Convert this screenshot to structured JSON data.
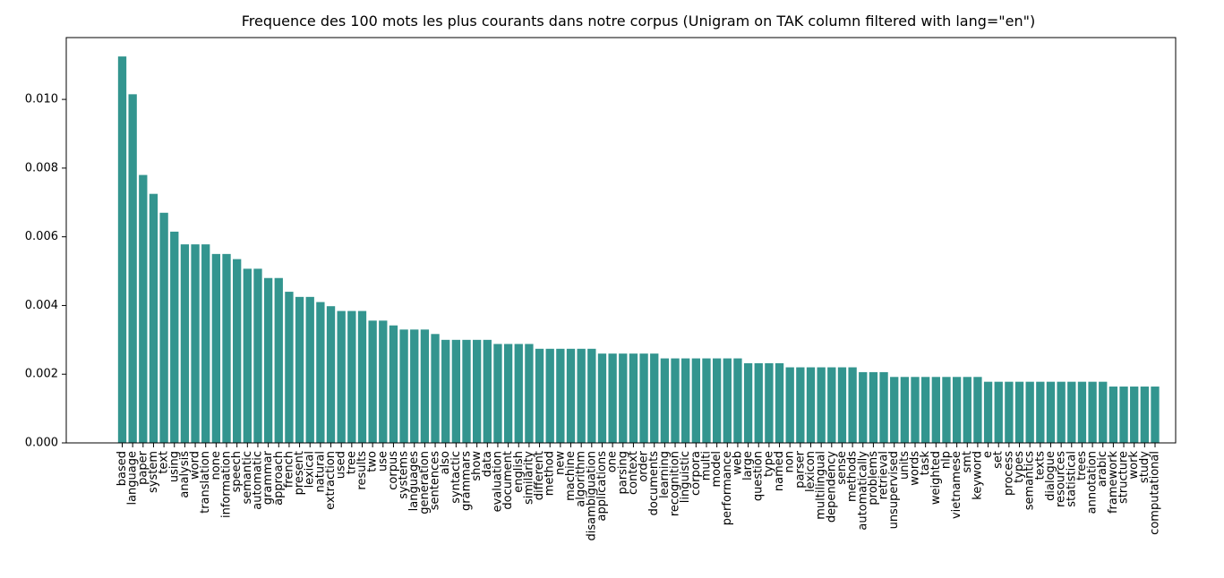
{
  "chart_data": {
    "type": "bar",
    "title": "Frequence des 100 mots les plus courants dans notre corpus (Unigram on TAK column filtered with lang=\"en\")",
    "xlabel": "",
    "ylabel": "",
    "ylim": [
      0,
      0.0118
    ],
    "yticks": [
      0.0,
      0.002,
      0.004,
      0.006,
      0.008,
      0.01
    ],
    "ytick_labels": [
      "0.000",
      "0.002",
      "0.004",
      "0.006",
      "0.008",
      "0.010"
    ],
    "bar_color": "#33958f",
    "grid": false,
    "categories": [
      "based",
      "language",
      "paper",
      "system",
      "text",
      "using",
      "analysis",
      "word",
      "translation",
      "none",
      "information",
      "speech",
      "semantic",
      "automatic",
      "grammar",
      "approach",
      "french",
      "present",
      "lexical",
      "natural",
      "extraction",
      "used",
      "tree",
      "results",
      "two",
      "use",
      "corpus",
      "systems",
      "languages",
      "generation",
      "sentences",
      "also",
      "syntactic",
      "grammars",
      "show",
      "data",
      "evaluation",
      "document",
      "english",
      "similarity",
      "different",
      "method",
      "new",
      "machine",
      "algorithm",
      "disambiguation",
      "applications",
      "one",
      "parsing",
      "context",
      "order",
      "documents",
      "learning",
      "recognition",
      "linguistic",
      "corpora",
      "multi",
      "model",
      "performance",
      "web",
      "large",
      "question",
      "type",
      "named",
      "non",
      "parser",
      "lexicon",
      "multilingual",
      "dependency",
      "sense",
      "methods",
      "automatically",
      "problems",
      "retrieval",
      "unsupervised",
      "units",
      "words",
      "task",
      "weighted",
      "nlp",
      "vietnamese",
      "smt",
      "keyword",
      "e",
      "set",
      "process",
      "types",
      "semantics",
      "texts",
      "dialogue",
      "resources",
      "statistical",
      "trees",
      "annotation",
      "arabic",
      "framework",
      "structure",
      "work",
      "study",
      "computational"
    ],
    "values": [
      0.01125,
      0.01015,
      0.0078,
      0.00725,
      0.0067,
      0.00615,
      0.00578,
      0.00578,
      0.00578,
      0.0055,
      0.0055,
      0.00535,
      0.00507,
      0.00507,
      0.0048,
      0.0048,
      0.0044,
      0.00425,
      0.00425,
      0.0041,
      0.00398,
      0.00384,
      0.00384,
      0.00384,
      0.00356,
      0.00356,
      0.00342,
      0.0033,
      0.0033,
      0.0033,
      0.00317,
      0.003,
      0.003,
      0.003,
      0.003,
      0.003,
      0.00288,
      0.00288,
      0.00288,
      0.00288,
      0.00274,
      0.00274,
      0.00274,
      0.00274,
      0.00274,
      0.00274,
      0.0026,
      0.0026,
      0.0026,
      0.0026,
      0.0026,
      0.0026,
      0.00246,
      0.00246,
      0.00246,
      0.00246,
      0.00246,
      0.00246,
      0.00246,
      0.00246,
      0.00232,
      0.00232,
      0.00232,
      0.00232,
      0.0022,
      0.0022,
      0.0022,
      0.0022,
      0.0022,
      0.0022,
      0.0022,
      0.00206,
      0.00206,
      0.00206,
      0.00192,
      0.00192,
      0.00192,
      0.00192,
      0.00192,
      0.00192,
      0.00192,
      0.00192,
      0.00192,
      0.00178,
      0.00178,
      0.00178,
      0.00178,
      0.00178,
      0.00178,
      0.00178,
      0.00178,
      0.00178,
      0.00178,
      0.00178,
      0.00178,
      0.00164,
      0.00164,
      0.00164,
      0.00164,
      0.00164
    ]
  }
}
